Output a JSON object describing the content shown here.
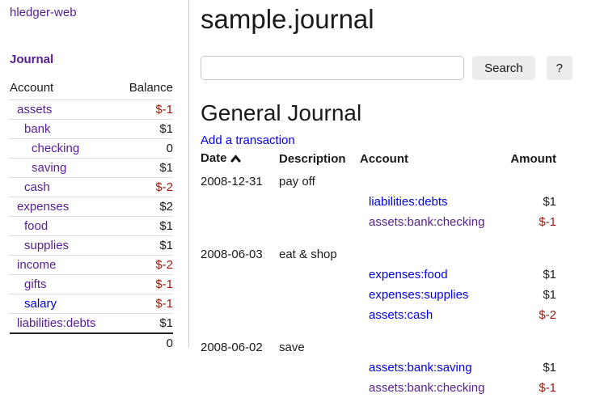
{
  "app": {
    "title": "hledger-web"
  },
  "colors": {
    "link_blue": "#0000ee",
    "link_visited_purple": "#561d96",
    "negative_red": "#9a1b10",
    "divider_gray": "#cccccc",
    "button_gray": "#ececec"
  },
  "sidebar": {
    "journal_label": "Journal",
    "accounts_table": {
      "headers": {
        "account": "Account",
        "balance": "Balance"
      },
      "rows": [
        {
          "name": "assets",
          "indent": 0,
          "balance": "$-1",
          "negative": true,
          "visited": true
        },
        {
          "name": "bank",
          "indent": 1,
          "balance": "$1",
          "negative": false,
          "visited": true
        },
        {
          "name": "checking",
          "indent": 2,
          "balance": "0",
          "negative": false,
          "visited": true
        },
        {
          "name": "saving",
          "indent": 2,
          "balance": "$1",
          "negative": false,
          "visited": true
        },
        {
          "name": "cash",
          "indent": 1,
          "balance": "$-2",
          "negative": true,
          "visited": true
        },
        {
          "name": "expenses",
          "indent": 0,
          "balance": "$2",
          "negative": false,
          "visited": true
        },
        {
          "name": "food",
          "indent": 1,
          "balance": "$1",
          "negative": false,
          "visited": true
        },
        {
          "name": "supplies",
          "indent": 1,
          "balance": "$1",
          "negative": false,
          "visited": true
        },
        {
          "name": "income",
          "indent": 0,
          "balance": "$-2",
          "negative": true,
          "visited": true
        },
        {
          "name": "gifts",
          "indent": 1,
          "balance": "$-1",
          "negative": true,
          "visited": true
        },
        {
          "name": "salary",
          "indent": 1,
          "balance": "$-1",
          "negative": true,
          "visited": false
        },
        {
          "name": "liabilities:debts",
          "indent": 0,
          "balance": "$1",
          "negative": false,
          "visited": true
        }
      ],
      "total": "0"
    }
  },
  "main": {
    "page_title": "sample.journal",
    "search": {
      "value": "",
      "button_label": "Search",
      "help_label": "?"
    },
    "section_title": "General Journal",
    "add_transaction_label": "Add a transaction",
    "register": {
      "headers": {
        "date": "Date",
        "description": "Description",
        "account": "Account",
        "amount": "Amount"
      },
      "sort_icon": "chevron-up",
      "transactions": [
        {
          "date": "2008-12-31",
          "description": "pay off",
          "postings": [
            {
              "account": "liabilities:debts",
              "amount": "$1",
              "negative": false,
              "visited": false
            },
            {
              "account": "assets:bank:checking",
              "amount": "$-1",
              "negative": true,
              "visited": true
            }
          ]
        },
        {
          "date": "2008-06-03",
          "description": "eat & shop",
          "postings": [
            {
              "account": "expenses:food",
              "amount": "$1",
              "negative": false,
              "visited": false
            },
            {
              "account": "expenses:supplies",
              "amount": "$1",
              "negative": false,
              "visited": false
            },
            {
              "account": "assets:cash",
              "amount": "$-2",
              "negative": true,
              "visited": false
            }
          ]
        },
        {
          "date": "2008-06-02",
          "description": "save",
          "postings": [
            {
              "account": "assets:bank:saving",
              "amount": "$1",
              "negative": false,
              "visited": false
            },
            {
              "account": "assets:bank:checking",
              "amount": "$-1",
              "negative": true,
              "visited": true
            }
          ]
        }
      ]
    }
  }
}
